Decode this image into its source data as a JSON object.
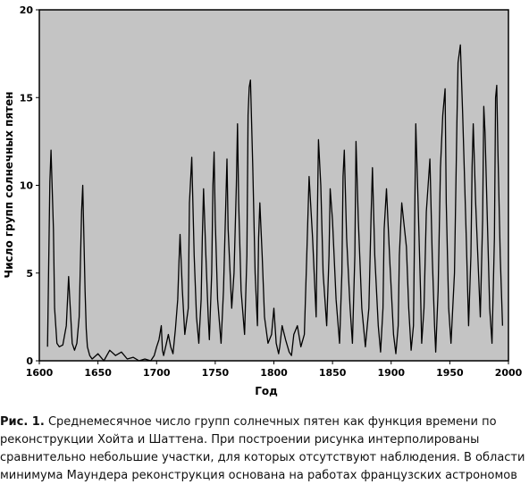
{
  "chart_data": {
    "type": "line",
    "title": "",
    "xlabel": "Год",
    "ylabel": "Число групп солнечных пятен",
    "xlim": [
      1600,
      2000
    ],
    "ylim": [
      0,
      20
    ],
    "x_ticks": [
      "1600",
      "1650",
      "1700",
      "1750",
      "1800",
      "1850",
      "1900",
      "1950",
      "2000"
    ],
    "y_ticks": [
      "0",
      "5",
      "10",
      "15",
      "20"
    ],
    "background_color": "#c4c4c4",
    "line_color": "#000000",
    "grid": false,
    "series": [
      {
        "name": "",
        "x": [
          1607,
          1609,
          1610,
          1612,
          1613,
          1615,
          1617,
          1620,
          1623,
          1625,
          1626,
          1628,
          1630,
          1632,
          1634,
          1636,
          1637,
          1638,
          1639,
          1640,
          1641,
          1643,
          1645,
          1650,
          1655,
          1660,
          1665,
          1670,
          1675,
          1680,
          1685,
          1690,
          1695,
          1698,
          1700,
          1702,
          1704,
          1705,
          1706,
          1708,
          1710,
          1712,
          1714,
          1716,
          1718,
          1719,
          1720,
          1722,
          1724,
          1727,
          1728,
          1730,
          1732,
          1734,
          1736,
          1738,
          1739,
          1740,
          1742,
          1744,
          1745,
          1747,
          1748,
          1749,
          1750,
          1752,
          1755,
          1757,
          1759,
          1760,
          1761,
          1764,
          1766,
          1768,
          1769,
          1770,
          1772,
          1775,
          1777,
          1778,
          1779,
          1780,
          1782,
          1784,
          1786,
          1787,
          1788,
          1790,
          1792,
          1795,
          1798,
          1800,
          1802,
          1804,
          1805,
          1807,
          1810,
          1813,
          1815,
          1817,
          1820,
          1823,
          1826,
          1828,
          1830,
          1833,
          1836,
          1837,
          1838,
          1840,
          1842,
          1845,
          1847,
          1848,
          1850,
          1853,
          1856,
          1858,
          1859,
          1860,
          1862,
          1865,
          1867,
          1869,
          1870,
          1872,
          1875,
          1878,
          1881,
          1883,
          1884,
          1886,
          1889,
          1891,
          1893,
          1894,
          1896,
          1899,
          1902,
          1904,
          1906,
          1907,
          1909,
          1913,
          1915,
          1917,
          1919,
          1921,
          1923,
          1925,
          1926,
          1928,
          1930,
          1933,
          1935,
          1937,
          1938,
          1940,
          1942,
          1944,
          1946,
          1947,
          1949,
          1951,
          1954,
          1956,
          1957,
          1959,
          1961,
          1964,
          1966,
          1968,
          1969,
          1970,
          1972,
          1976,
          1978,
          1979,
          1980,
          1982,
          1984,
          1986,
          1988,
          1989,
          1990,
          1991,
          1993,
          1995
        ],
        "values": [
          0.8,
          10.2,
          12.0,
          7.5,
          3.0,
          1.0,
          0.8,
          0.9,
          2.0,
          4.8,
          3.5,
          1.0,
          0.6,
          1.0,
          2.5,
          8.5,
          10.0,
          7.0,
          4.0,
          1.8,
          0.8,
          0.3,
          0.1,
          0.4,
          0.0,
          0.6,
          0.3,
          0.5,
          0.1,
          0.2,
          0.0,
          0.1,
          0.0,
          0.3,
          0.8,
          1.2,
          2.0,
          0.6,
          0.3,
          0.9,
          1.5,
          0.8,
          0.4,
          1.8,
          3.5,
          5.5,
          7.2,
          4.0,
          1.5,
          3.0,
          9.0,
          11.6,
          6.0,
          2.5,
          1.0,
          3.5,
          7.0,
          9.8,
          6.0,
          2.5,
          1.2,
          5.0,
          10.0,
          11.9,
          8.0,
          3.5,
          1.0,
          4.0,
          9.0,
          11.5,
          7.5,
          3.0,
          5.0,
          10.0,
          13.5,
          9.0,
          4.0,
          1.5,
          6.0,
          14.0,
          15.6,
          16.0,
          11.0,
          5.0,
          2.0,
          7.0,
          9.0,
          6.0,
          2.5,
          1.0,
          1.5,
          3.0,
          1.0,
          0.4,
          0.8,
          2.0,
          1.2,
          0.5,
          0.3,
          1.5,
          2.0,
          0.8,
          1.5,
          6.0,
          10.5,
          7.0,
          2.5,
          8.0,
          12.6,
          10.0,
          5.0,
          2.0,
          6.0,
          9.8,
          8.0,
          3.5,
          1.0,
          5.0,
          10.5,
          12.0,
          7.0,
          3.0,
          1.0,
          6.0,
          12.5,
          8.0,
          3.0,
          0.8,
          3.0,
          8.5,
          11.0,
          6.0,
          2.0,
          0.5,
          3.0,
          7.5,
          9.8,
          5.5,
          1.5,
          0.4,
          2.0,
          6.0,
          9.0,
          6.5,
          3.0,
          0.6,
          2.0,
          13.5,
          9.0,
          4.0,
          1.0,
          3.0,
          8.5,
          11.5,
          6.0,
          2.0,
          0.5,
          4.0,
          11.0,
          14.0,
          15.5,
          9.0,
          3.0,
          1.0,
          5.0,
          13.5,
          17.0,
          18.0,
          14.0,
          7.0,
          2.0,
          6.0,
          11.0,
          13.5,
          9.0,
          2.5,
          8.0,
          14.5,
          13.0,
          8.0,
          3.0,
          1.0,
          7.0,
          15.0,
          15.7,
          12.0,
          6.0,
          2.0
        ]
      }
    ]
  },
  "caption": {
    "prefix": "Рис. 1.",
    "text": "Среднемесячное число групп солнечных пятен как функция времени по реконструкции Хойта и Шаттена. При построении рисунка интерполированы сравнительно небольшие участки, для которых отсутствуют наблюдения. В области минимума Маундера реконструкция основана на работах французских астрономов"
  }
}
